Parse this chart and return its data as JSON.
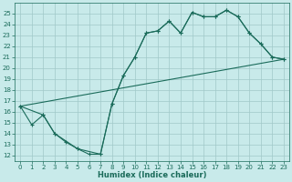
{
  "xlabel": "Humidex (Indice chaleur)",
  "xlim": [
    -0.5,
    23.5
  ],
  "ylim": [
    11.5,
    26.0
  ],
  "xticks": [
    0,
    1,
    2,
    3,
    4,
    5,
    6,
    7,
    8,
    9,
    10,
    11,
    12,
    13,
    14,
    15,
    16,
    17,
    18,
    19,
    20,
    21,
    22,
    23
  ],
  "yticks": [
    12,
    13,
    14,
    15,
    16,
    17,
    18,
    19,
    20,
    21,
    22,
    23,
    24,
    25
  ],
  "bg_color": "#c8eaea",
  "grid_color": "#a0c8c8",
  "line_color": "#1a6b5a",
  "line1_x": [
    0,
    1,
    2,
    3,
    4,
    5,
    6,
    7,
    8,
    9,
    10,
    11,
    12,
    13,
    14,
    15,
    16,
    17,
    18,
    19,
    20,
    21,
    22,
    23
  ],
  "line1_y": [
    16.5,
    14.8,
    15.7,
    14.0,
    13.2,
    12.6,
    12.1,
    12.1,
    16.7,
    19.3,
    21.0,
    23.2,
    23.4,
    24.3,
    23.2,
    25.1,
    24.7,
    24.7,
    25.3,
    24.7,
    23.2,
    22.2,
    21.0,
    20.8
  ],
  "line2_x": [
    0,
    2,
    3,
    5,
    7,
    8,
    9,
    10,
    11,
    12,
    13,
    14,
    15,
    16,
    17,
    18,
    19,
    20,
    21,
    22,
    23
  ],
  "line2_y": [
    16.5,
    15.7,
    14.0,
    12.6,
    12.1,
    16.7,
    19.3,
    21.0,
    23.2,
    23.4,
    24.3,
    23.2,
    25.1,
    24.7,
    24.7,
    25.3,
    24.7,
    23.2,
    22.2,
    21.0,
    20.8
  ],
  "line3_x": [
    0,
    23
  ],
  "line3_y": [
    16.5,
    20.8
  ]
}
